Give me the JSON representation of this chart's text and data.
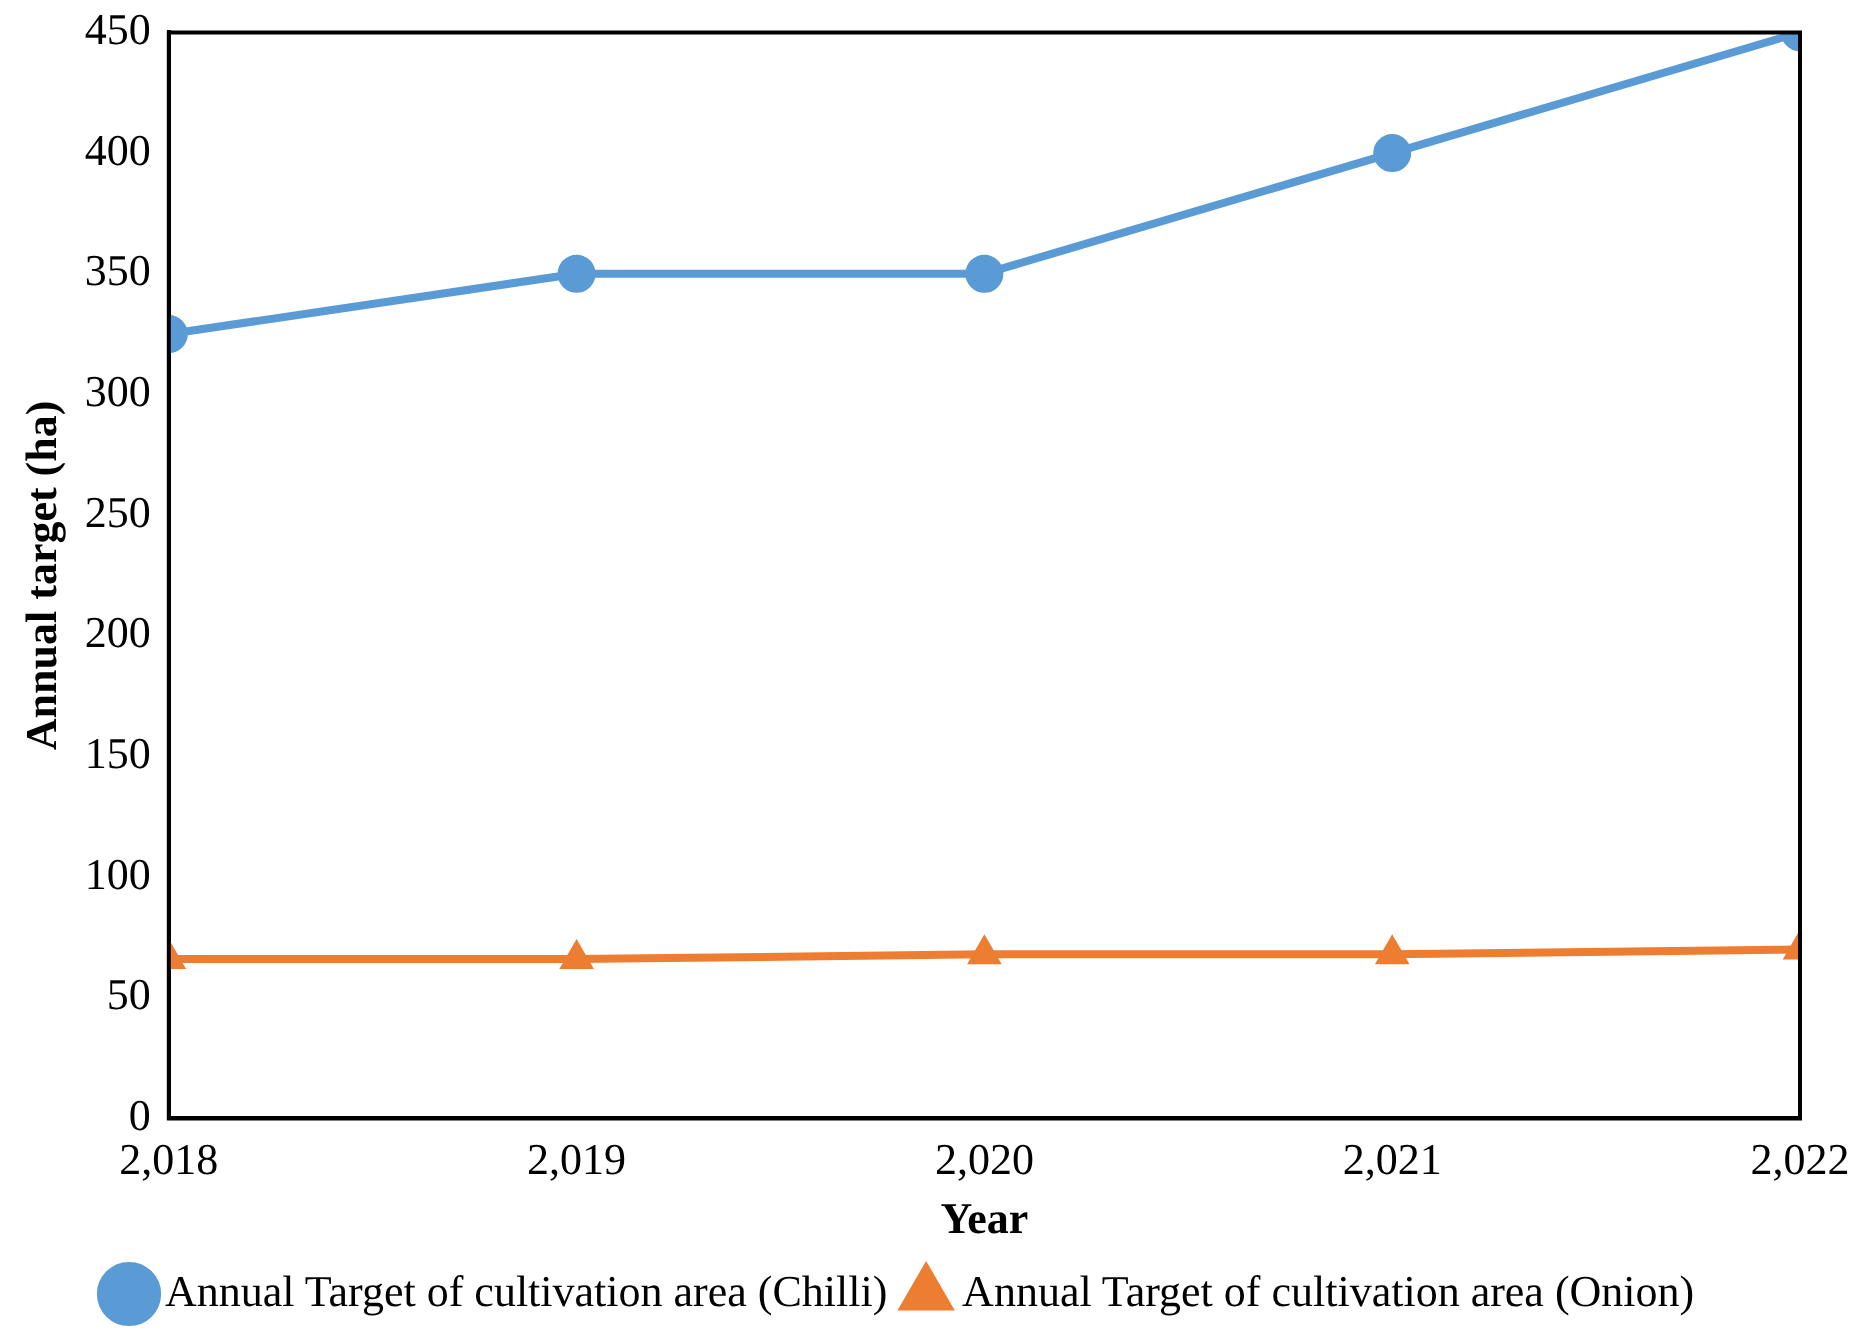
{
  "chart_data": {
    "type": "line",
    "xlabel": "Year",
    "ylabel": "Annual target (ha)",
    "x": [
      2018,
      2019,
      2020,
      2021,
      2022
    ],
    "series": [
      {
        "name": "Annual Target of cultivation area (Chilli)",
        "color": "#5b9bd5",
        "marker": "circle",
        "values": [
          325,
          350,
          350,
          400,
          450
        ]
      },
      {
        "name": "Annual Target of cultivation area (Onion)",
        "color": "#ed7d31",
        "marker": "triangle",
        "values": [
          66,
          66,
          68,
          68,
          70
        ]
      }
    ],
    "xlim": [
      2018,
      2022
    ],
    "xticks": [
      {
        "value": 2018,
        "label": "2,018"
      },
      {
        "value": 2019,
        "label": "2,019"
      },
      {
        "value": 2020,
        "label": "2,020"
      },
      {
        "value": 2021,
        "label": "2,021"
      },
      {
        "value": 2022,
        "label": "2,022"
      }
    ],
    "ylim": [
      0,
      450
    ],
    "yticks": [
      0,
      50,
      100,
      150,
      200,
      250,
      300,
      350,
      400,
      450
    ],
    "grid": false,
    "legend": "bottom",
    "line_style": "solid"
  }
}
